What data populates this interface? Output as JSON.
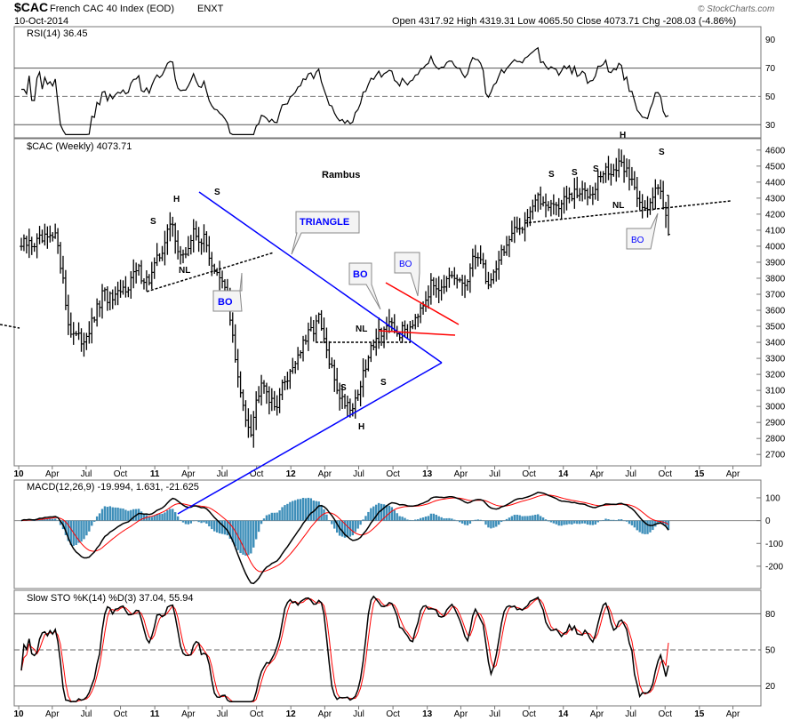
{
  "header": {
    "symbol": "$CAC",
    "name": "French CAC 40 Index (EOD)",
    "exchange": "ENXT",
    "date": "10-Oct-2014",
    "ohlc": "Open 4317.92  High 4319.31  Low 4065.50  Close 4073.71  Chg -208.03 (-4.86%)",
    "brand": "© StockCharts.com"
  },
  "colors": {
    "price": "#000000",
    "rsi": "#000000",
    "macd": "#000000",
    "signal": "#ff0000",
    "histogram": "#3d8eb9",
    "triangle": "#0000ff",
    "channel": "#ff0000",
    "stoK": "#000000",
    "stoD": "#ff0000"
  },
  "x_axis": {
    "labels": [
      "10",
      "Apr",
      "Jul",
      "Oct",
      "11",
      "Apr",
      "Jul",
      "Oct",
      "12",
      "Apr",
      "Jul",
      "Oct",
      "13",
      "Apr",
      "Jul",
      "Oct",
      "14",
      "Apr",
      "Jul",
      "Oct",
      "15",
      "Apr"
    ]
  },
  "rsi": {
    "label": "RSI(14) 36.45",
    "levels": [
      90,
      70,
      50,
      30
    ],
    "ylim": [
      22,
      98
    ]
  },
  "main": {
    "label": "$CAC (Weekly) 4073.71",
    "title": "Rambus",
    "ylim": [
      2640,
      4660
    ],
    "ticks": [
      2700,
      2800,
      2900,
      3000,
      3100,
      3200,
      3300,
      3400,
      3500,
      3600,
      3700,
      3800,
      3900,
      4000,
      4100,
      4200,
      4300,
      4400,
      4500,
      4600
    ]
  },
  "macd": {
    "label": "MACD(12,26,9) -19.994, 1.631, -21.625",
    "ticks": [
      100,
      0,
      -100,
      -200
    ],
    "ylim": [
      -290,
      170
    ]
  },
  "sto": {
    "label": "Slow STO %K(14) %D(3) 37.04, 55.94",
    "levels": [
      80,
      50,
      20
    ],
    "ylim": [
      5,
      98
    ]
  },
  "annotations": {
    "s": "S",
    "h": "H",
    "nl": "NL",
    "bo": "BO",
    "triangle": "TRIANGLE"
  },
  "chart_data": {
    "type": "ohlc",
    "interval": "weekly",
    "x": {
      "start": "2010-01-08",
      "end": "2014-10-10"
    },
    "price_anchors": [
      [
        "2010-01",
        4000
      ],
      [
        "2010-04",
        4050
      ],
      [
        "2010-05",
        3500
      ],
      [
        "2010-06",
        3400
      ],
      [
        "2010-07",
        3500
      ],
      [
        "2010-08",
        3700
      ],
      [
        "2010-09",
        3650
      ],
      [
        "2010-11",
        3850
      ],
      [
        "2010-12",
        3780
      ],
      [
        "2011-01",
        3950
      ],
      [
        "2011-02",
        4150
      ],
      [
        "2011-03",
        3900
      ],
      [
        "2011-04",
        4080
      ],
      [
        "2011-05",
        4030
      ],
      [
        "2011-06",
        3820
      ],
      [
        "2011-07",
        3700
      ],
      [
        "2011-08",
        3100
      ],
      [
        "2011-09",
        2850
      ],
      [
        "2011-10",
        3200
      ],
      [
        "2011-11",
        2980
      ],
      [
        "2011-12",
        3150
      ],
      [
        "2012-01",
        3300
      ],
      [
        "2012-03",
        3550
      ],
      [
        "2012-04",
        3250
      ],
      [
        "2012-05",
        3050
      ],
      [
        "2012-06",
        3000
      ],
      [
        "2012-07",
        3200
      ],
      [
        "2012-08",
        3450
      ],
      [
        "2012-09",
        3500
      ],
      [
        "2012-10",
        3450
      ],
      [
        "2012-11",
        3500
      ],
      [
        "2012-12",
        3640
      ],
      [
        "2013-01",
        3760
      ],
      [
        "2013-03",
        3780
      ],
      [
        "2013-04",
        3760
      ],
      [
        "2013-05",
        3980
      ],
      [
        "2013-06",
        3750
      ],
      [
        "2013-07",
        3950
      ],
      [
        "2013-09",
        4150
      ],
      [
        "2013-10",
        4280
      ],
      [
        "2013-11",
        4280
      ],
      [
        "2013-12",
        4250
      ],
      [
        "2014-01",
        4300
      ],
      [
        "2014-03",
        4350
      ],
      [
        "2014-04",
        4450
      ],
      [
        "2014-06",
        4500
      ],
      [
        "2014-07",
        4350
      ],
      [
        "2014-08",
        4200
      ],
      [
        "2014-09",
        4430
      ],
      [
        "2014-10",
        4073
      ]
    ],
    "last_close": 4073.71
  }
}
